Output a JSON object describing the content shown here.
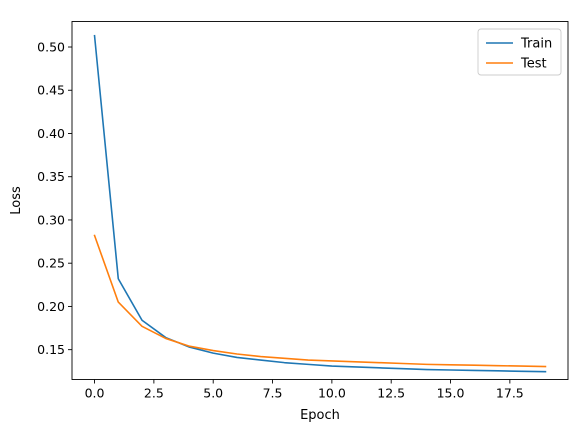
{
  "chart_data": {
    "type": "line",
    "xlabel": "Epoch",
    "ylabel": "Loss",
    "xlim": [
      -0.95,
      19.95
    ],
    "ylim": [
      0.1155,
      0.5295
    ],
    "xticks": [
      0.0,
      2.5,
      5.0,
      7.5,
      10.0,
      12.5,
      15.0,
      17.5
    ],
    "xtick_labels": [
      "0.0",
      "2.5",
      "5.0",
      "7.5",
      "10.0",
      "12.5",
      "15.0",
      "17.5"
    ],
    "yticks": [
      0.15,
      0.2,
      0.25,
      0.3,
      0.35,
      0.4,
      0.45,
      0.5
    ],
    "ytick_labels": [
      "0.15",
      "0.20",
      "0.25",
      "0.30",
      "0.35",
      "0.40",
      "0.45",
      "0.50"
    ],
    "grid": false,
    "legend_position": "top-right",
    "x": [
      0,
      1,
      2,
      3,
      4,
      5,
      6,
      7,
      8,
      9,
      10,
      11,
      12,
      13,
      14,
      15,
      16,
      17,
      18,
      19
    ],
    "series": [
      {
        "name": "Train",
        "color": "#1f77b4",
        "values": [
          0.513,
          0.232,
          0.184,
          0.164,
          0.153,
          0.146,
          0.141,
          0.138,
          0.135,
          0.133,
          0.131,
          0.13,
          0.129,
          0.128,
          0.127,
          0.1265,
          0.126,
          0.1255,
          0.125,
          0.1245
        ]
      },
      {
        "name": "Test",
        "color": "#ff7f0e",
        "values": [
          0.282,
          0.205,
          0.177,
          0.163,
          0.154,
          0.149,
          0.145,
          0.142,
          0.14,
          0.138,
          0.137,
          0.136,
          0.135,
          0.134,
          0.133,
          0.1325,
          0.132,
          0.1315,
          0.131,
          0.1305
        ]
      }
    ]
  }
}
